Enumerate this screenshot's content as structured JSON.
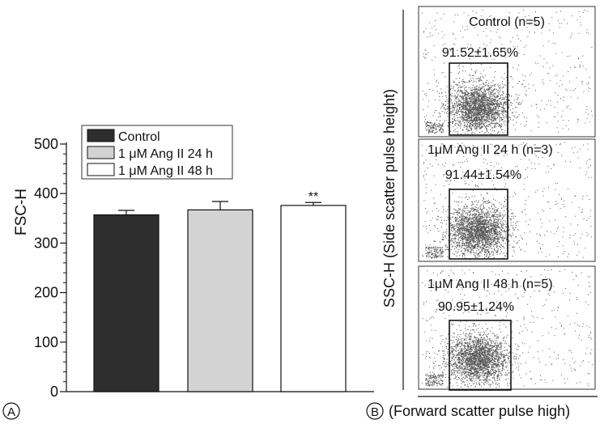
{
  "panel_a": {
    "label": "A",
    "chart_data": {
      "type": "bar",
      "ylabel": "FSC-H",
      "xlabel": "",
      "ylim": [
        0,
        500
      ],
      "yticks": [
        0,
        100,
        200,
        300,
        400,
        500
      ],
      "categories": [
        "Control",
        "1 μM Ang II 24 h",
        "1 μM Ang II 48 h"
      ],
      "values": [
        357,
        367,
        376
      ],
      "errors": [
        9,
        17,
        6
      ],
      "colors": [
        "#2e2e2e",
        "#d3d3d3",
        "#ffffff"
      ],
      "significance": [
        "",
        "",
        "**"
      ],
      "legend": [
        "Control",
        "1 μM Ang II 24 h",
        "1 μM Ang II 48 h"
      ],
      "legend_position": "top"
    }
  },
  "panel_b": {
    "label": "B",
    "ylabel": "SSC-H (Side scatter pulse height)",
    "xlabel": "(Forward scatter pulse high)",
    "plots": [
      {
        "title": "Control (n=5)",
        "gate_value": "91.52±1.65%"
      },
      {
        "title": "1μM Ang II 24 h (n=3)",
        "gate_value": "91.44±1.54%"
      },
      {
        "title": "1μM Ang II 48 h (n=5)",
        "gate_value": "90.95±1.24%"
      }
    ]
  }
}
